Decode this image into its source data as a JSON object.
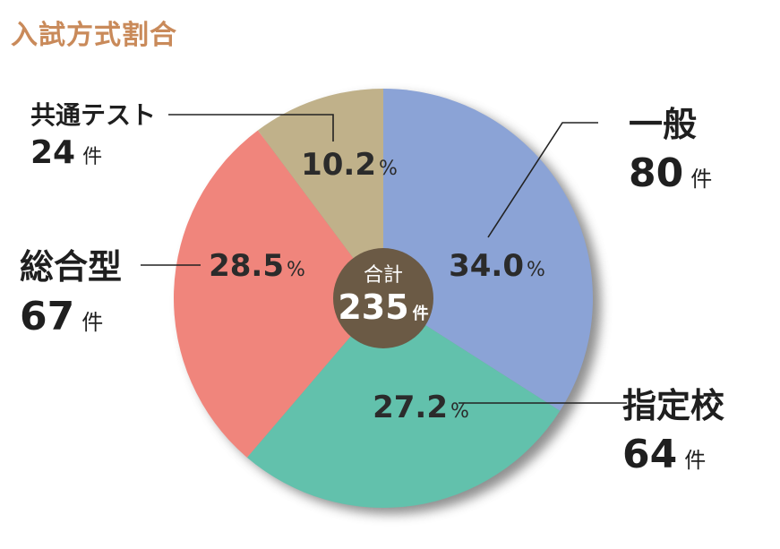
{
  "page_title": "入試方式割合",
  "chart_data": {
    "type": "pie",
    "title": "入試方式割合",
    "unit": "件",
    "percent_sign": "%",
    "total": {
      "caption": "合計",
      "value": "235",
      "unit": "件"
    },
    "slices": [
      {
        "name": "一般",
        "count": "80",
        "percent": "34.0",
        "value": 34.0,
        "color": "#8ba3d6"
      },
      {
        "name": "指定校",
        "count": "64",
        "percent": "27.2",
        "value": 27.2,
        "color": "#62c1ac"
      },
      {
        "name": "総合型",
        "count": "67",
        "percent": "28.5",
        "value": 28.5,
        "color": "#f0857c"
      },
      {
        "name": "共通テスト",
        "count": "24",
        "percent": "10.2",
        "value": 10.2,
        "color": "#c0b18a"
      }
    ],
    "colors": {
      "title": "#c98a5a",
      "center": "#6b5a45",
      "shadow": "#6b6b6b"
    }
  }
}
